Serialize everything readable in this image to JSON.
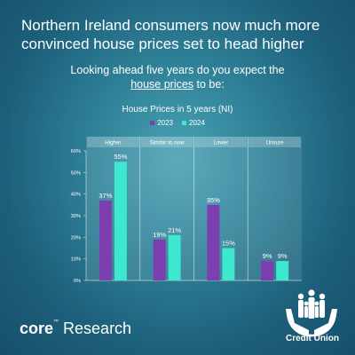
{
  "headline": "Northern Ireland consumers now much more convinced house prices set to head higher",
  "question": {
    "line1": "Looking ahead five years do you expect the",
    "line2_underlined": "house prices",
    "line2_rest": " to be:"
  },
  "chart_data": {
    "type": "bar",
    "title": "House Prices in 5 years (NI)",
    "categories": [
      "Higher",
      "Similar to now",
      "Lower",
      "Unsure"
    ],
    "series": [
      {
        "name": "2023",
        "values": [
          37,
          19,
          35,
          9
        ],
        "labels": [
          "37%",
          "19%",
          "35%",
          "9%"
        ],
        "color": "#7b3fb0"
      },
      {
        "name": "2024",
        "values": [
          55,
          21,
          15,
          9
        ],
        "labels": [
          "55%",
          "21%",
          "15%",
          "9%"
        ],
        "color": "#3ee8cf"
      }
    ],
    "yticks": [
      "0%",
      "10%",
      "20%",
      "30%",
      "40%",
      "50%",
      "60%"
    ],
    "ylim": [
      0,
      60
    ],
    "grid": false,
    "legend": "top-center"
  },
  "branding": {
    "core_bold": "core",
    "core_tm": "™",
    "core_rest": " Research",
    "credit_union": "Credit Union"
  }
}
